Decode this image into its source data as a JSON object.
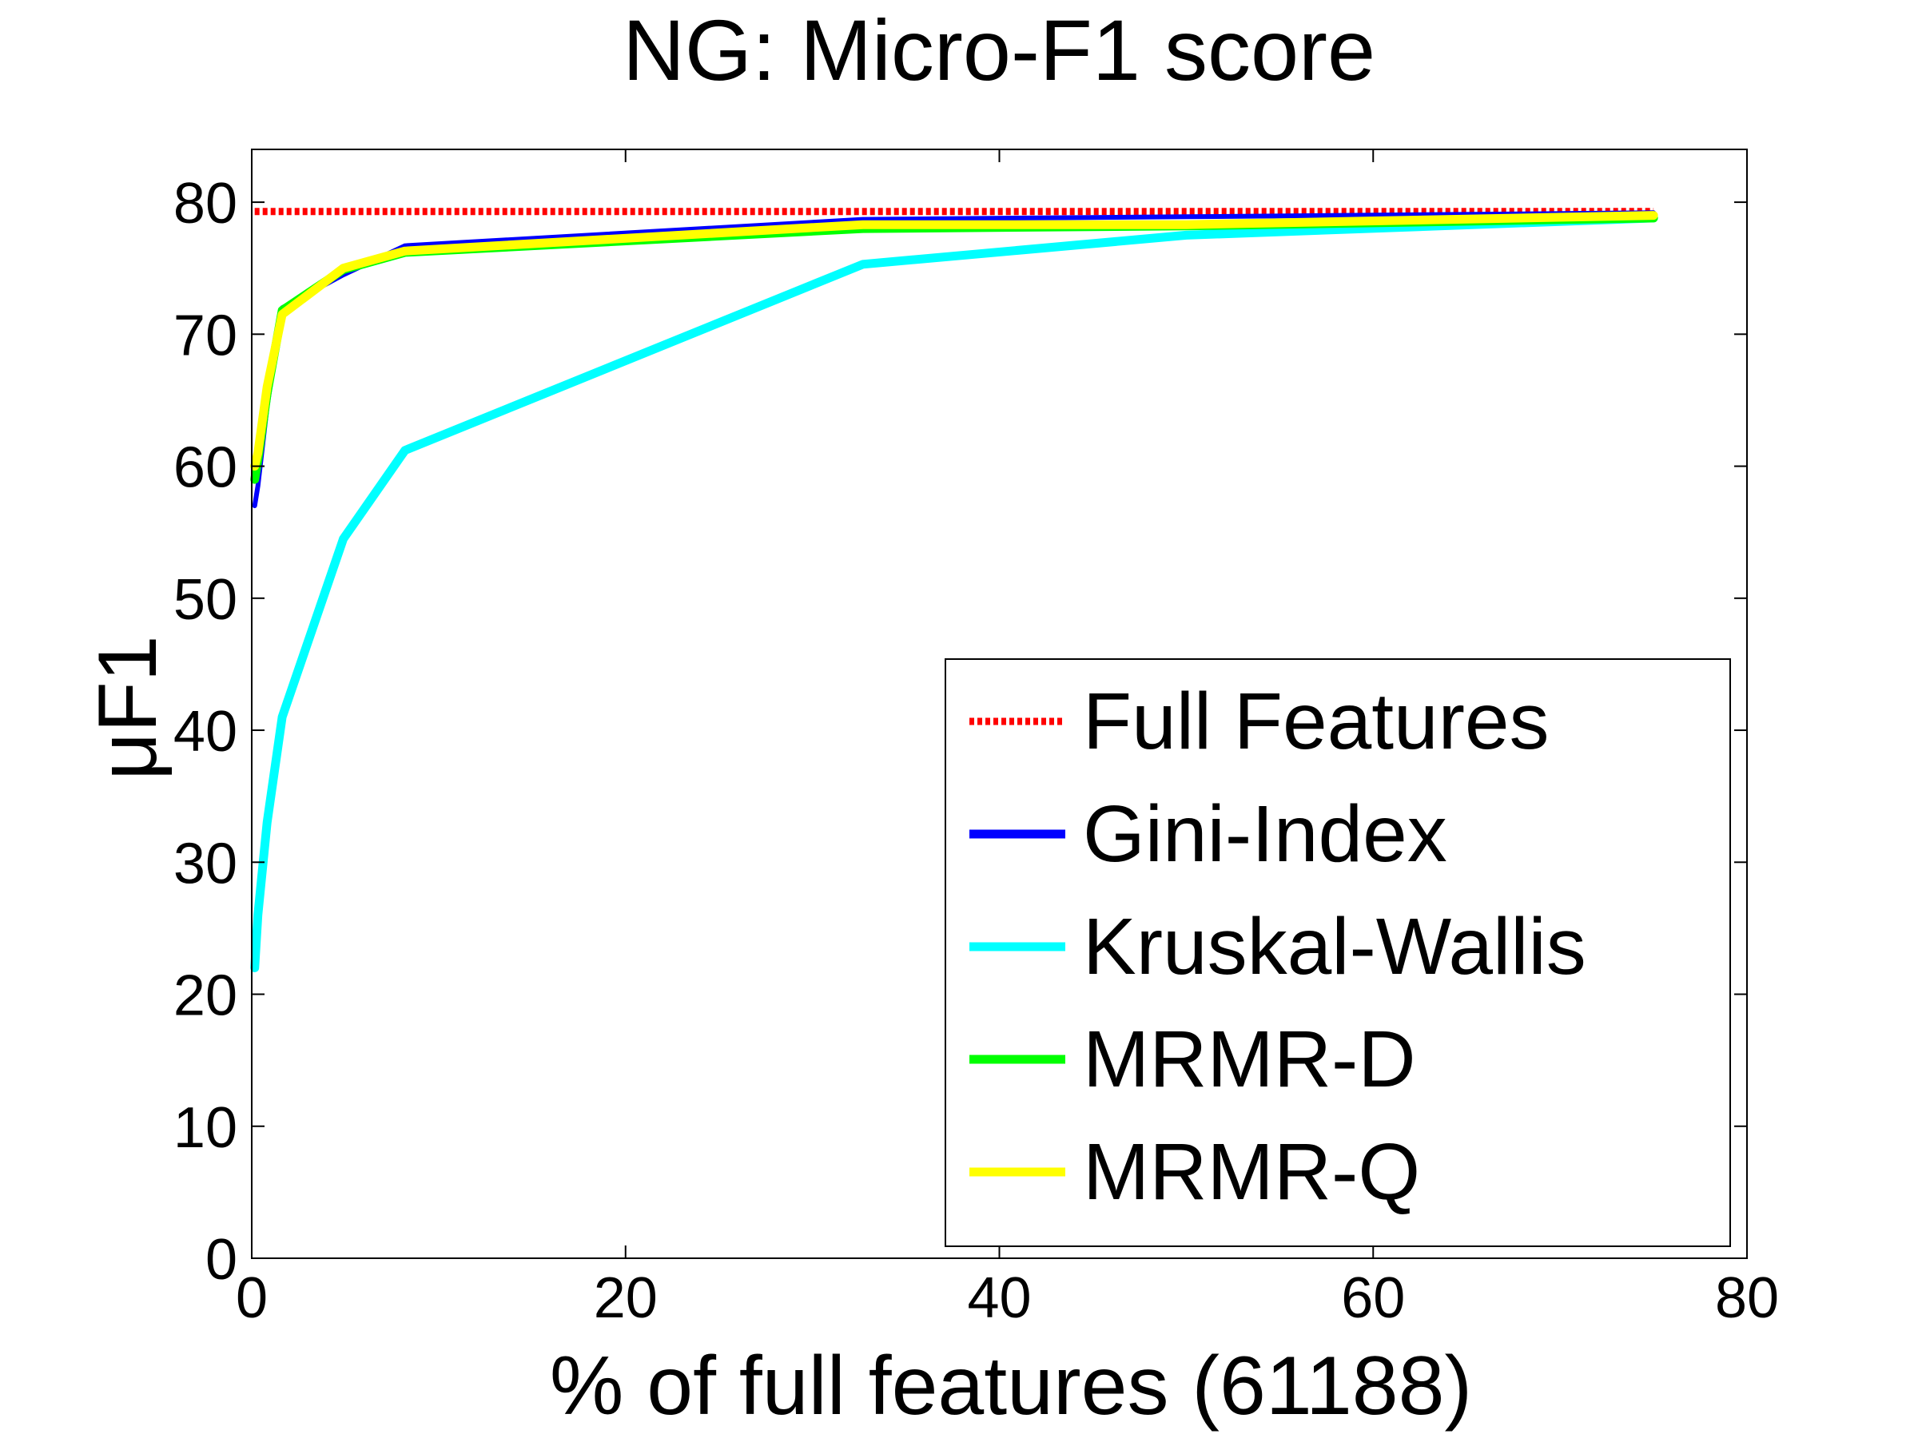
{
  "chart_data": {
    "type": "line",
    "title": "NG: Micro-F1 score",
    "xlabel": "% of full features (61188)",
    "ylabel": "μF1",
    "xlim": [
      0,
      80
    ],
    "ylim": [
      0,
      84
    ],
    "xticks": [
      0,
      20,
      40,
      60,
      80
    ],
    "yticks": [
      0,
      10,
      20,
      30,
      40,
      50,
      60,
      70,
      80
    ],
    "grid": false,
    "legend_position": "bottom-right",
    "series": [
      {
        "name": "Full Features",
        "color": "#ff0000",
        "dashed": true,
        "x": [
          0.16,
          75
        ],
        "y": [
          79.3,
          79.3
        ]
      },
      {
        "name": "Gini-Index",
        "color": "#0000ff",
        "dashed": false,
        "x": [
          0.16,
          0.33,
          0.82,
          1.63,
          4.9,
          8.2,
          32.7,
          50,
          75
        ],
        "y": [
          57,
          58.5,
          64.5,
          72,
          74.5,
          76.7,
          78.7,
          78.9,
          79.2
        ]
      },
      {
        "name": "Kruskal-Wallis",
        "color": "#00ffff",
        "dashed": false,
        "x": [
          0.16,
          0.33,
          0.82,
          1.63,
          4.9,
          8.2,
          32.7,
          50,
          75
        ],
        "y": [
          22,
          26,
          33,
          41,
          54.5,
          61.2,
          75.3,
          77.5,
          78.8
        ]
      },
      {
        "name": "MRMR-D",
        "color": "#00ff00",
        "dashed": false,
        "x": [
          0.16,
          0.33,
          0.82,
          1.63,
          4.9,
          8.2,
          32.7,
          50,
          75
        ],
        "y": [
          59,
          60.5,
          65.5,
          71.8,
          74.9,
          76.2,
          78,
          78.2,
          78.8
        ]
      },
      {
        "name": "MRMR-Q",
        "color": "#ffff00",
        "dashed": false,
        "x": [
          0.16,
          0.33,
          0.82,
          1.63,
          4.9,
          8.2,
          32.7,
          50,
          75
        ],
        "y": [
          60,
          61,
          66,
          71.5,
          75,
          76.3,
          78.3,
          78.3,
          79
        ]
      }
    ]
  }
}
